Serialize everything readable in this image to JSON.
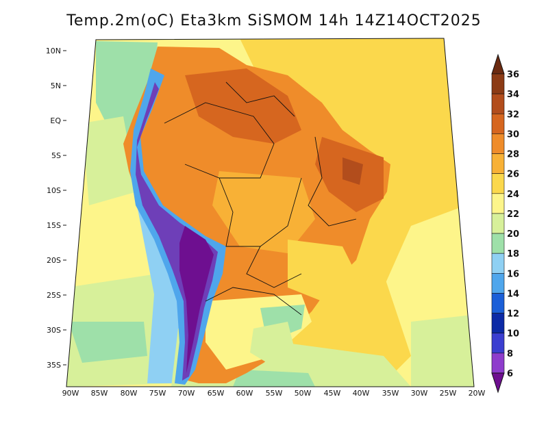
{
  "title": "Temp.2m(oC) Eta3km SiSMOM 14h 14Z14OCT2025",
  "lat_labels": [
    "10N",
    "5N",
    "EQ",
    "5S",
    "10S",
    "15S",
    "20S",
    "25S",
    "30S",
    "35S"
  ],
  "lon_labels": [
    "90W",
    "85W",
    "80W",
    "75W",
    "70W",
    "65W",
    "60W",
    "55W",
    "50W",
    "45W",
    "40W",
    "35W",
    "30W",
    "25W",
    "20W"
  ],
  "colorbar": {
    "labels": [
      "36",
      "34",
      "32",
      "30",
      "28",
      "26",
      "24",
      "22",
      "20",
      "18",
      "16",
      "14",
      "12",
      "10",
      "8",
      "6"
    ],
    "colors": [
      "#6b2a10",
      "#8c3b15",
      "#b24d1c",
      "#d6661f",
      "#ef8c2a",
      "#f8b136",
      "#fbd84c",
      "#fdf58a",
      "#d7f09a",
      "#9ee0a9",
      "#8fd0f3",
      "#4fa6ec",
      "#1b5fd8",
      "#0c2aa6",
      "#3b3ed0",
      "#8e3ccc",
      "#6e0f90"
    ],
    "units": "oC"
  },
  "colors": {
    "ocean_warm": "#fbd84c",
    "ocean_mild": "#fdf58a",
    "ocean_cool": "#d7f09a",
    "land_hot": "#ef8c2a",
    "land_very_hot": "#d6661f",
    "andes_cold": "#6e3fb8",
    "south_cool": "#9ee0a9"
  }
}
